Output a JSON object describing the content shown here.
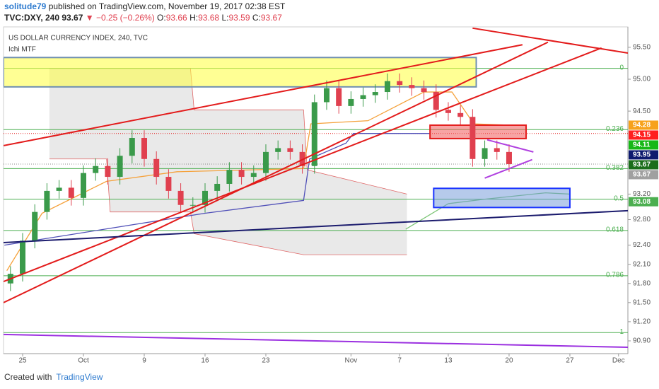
{
  "header": {
    "author": "solitude79",
    "published": "published on TradingView.com, November 19, 2017 02:38 EST",
    "symbol": "TVC:DXY, 240",
    "last": 93.67,
    "change": "▼ −0.25 (−0.26%)",
    "ohlc": [
      {
        "key": "O:",
        "value": 93.66
      },
      {
        "key": "H:",
        "value": 93.68
      },
      {
        "key": "L:",
        "value": 93.59
      },
      {
        "key": "C:",
        "value": 93.67
      }
    ]
  },
  "footer": {
    "created": "Created with",
    "brand": "TradingView"
  },
  "chart_data": {
    "type": "candlestick",
    "title": "US DOLLAR CURRENCY INDEX, 240, TVC",
    "subtitle": "Ichi MTF",
    "x": [
      -1,
      0,
      1,
      2,
      3,
      4,
      5,
      6,
      7,
      8,
      9,
      10,
      11,
      12,
      13,
      14,
      15,
      16,
      17,
      18,
      19,
      20,
      21,
      22,
      23,
      24,
      25,
      26,
      27,
      28,
      29,
      30,
      31,
      32,
      33,
      34,
      35,
      36,
      37,
      38,
      39,
      40
    ],
    "open": [
      91.8,
      91.95,
      92.47,
      92.92,
      93.25,
      93.3,
      93.14,
      93.53,
      93.64,
      93.47,
      93.8,
      94.08,
      93.75,
      93.47,
      93.25,
      93.03,
      93.03,
      93.25,
      93.36,
      93.58,
      93.47,
      93.53,
      93.86,
      93.92,
      93.86,
      93.64,
      94.64,
      94.86,
      94.58,
      94.69,
      94.75,
      94.8,
      94.97,
      94.91,
      94.86,
      94.8,
      94.52,
      94.47,
      94.41,
      93.75,
      93.92,
      93.86
    ],
    "high": [
      92.07,
      92.59,
      93.04,
      93.37,
      93.42,
      93.42,
      93.65,
      93.76,
      93.76,
      93.92,
      94.2,
      94.2,
      93.87,
      93.59,
      93.37,
      93.15,
      93.37,
      93.48,
      93.7,
      93.7,
      93.65,
      93.98,
      94.04,
      94.04,
      93.98,
      94.76,
      94.98,
      94.98,
      94.81,
      94.87,
      94.92,
      95.09,
      95.09,
      95.03,
      94.98,
      94.92,
      94.64,
      94.59,
      94.53,
      94.04,
      94.04,
      93.98
    ],
    "low": [
      91.68,
      91.83,
      92.35,
      92.8,
      93.13,
      93.02,
      93.02,
      93.41,
      93.35,
      93.35,
      93.68,
      93.63,
      93.35,
      93.13,
      92.91,
      92.91,
      92.91,
      93.13,
      93.24,
      93.35,
      93.35,
      93.41,
      93.74,
      93.74,
      93.52,
      93.52,
      94.52,
      94.46,
      94.46,
      94.57,
      94.63,
      94.68,
      94.79,
      94.74,
      94.68,
      94.4,
      94.35,
      94.29,
      93.63,
      93.63,
      93.74,
      93.55
    ],
    "close": [
      91.95,
      92.47,
      92.92,
      93.25,
      93.3,
      93.14,
      93.53,
      93.64,
      93.47,
      93.8,
      94.08,
      93.75,
      93.47,
      93.25,
      93.03,
      93.03,
      93.25,
      93.36,
      93.58,
      93.47,
      93.53,
      93.86,
      93.92,
      93.86,
      93.64,
      94.64,
      94.86,
      94.58,
      94.69,
      94.75,
      94.8,
      94.97,
      94.91,
      94.86,
      94.8,
      94.52,
      94.47,
      94.41,
      93.75,
      93.92,
      93.86,
      93.67
    ],
    "up_color": "#3a9a4a",
    "down_color": "#e0404f",
    "xlim": [
      -1.57,
      49.77
    ],
    "xticks": [
      {
        "value": 0,
        "label": "25"
      },
      {
        "value": 5,
        "label": "Oct"
      },
      {
        "value": 10,
        "label": "9"
      },
      {
        "value": 15,
        "label": "16"
      },
      {
        "value": 20,
        "label": "23"
      },
      {
        "value": 27,
        "label": "Nov"
      },
      {
        "value": 31,
        "label": "7"
      },
      {
        "value": 35,
        "label": "13"
      },
      {
        "value": 40,
        "label": "20"
      },
      {
        "value": 45,
        "label": "27"
      },
      {
        "value": 49,
        "label": "Dec"
      }
    ],
    "ylim": [
      90.7,
      95.82
    ],
    "yticks": [
      {
        "value": 95.5,
        "label": "95.50"
      },
      {
        "value": 95,
        "label": "95.00"
      },
      {
        "value": 94.5,
        "label": "94.50"
      },
      {
        "value": 93.2,
        "label": "93.20"
      },
      {
        "value": 92.8,
        "label": "92.80"
      },
      {
        "value": 92.4,
        "label": "92.40"
      },
      {
        "value": 92.1,
        "label": "92.10"
      },
      {
        "value": 91.8,
        "label": "91.80"
      },
      {
        "value": 91.5,
        "label": "91.50"
      },
      {
        "value": 91.2,
        "label": "91.20"
      },
      {
        "value": 90.9,
        "label": "90.90"
      }
    ],
    "grid": false,
    "cloud": {
      "color": "#e4e4e4",
      "edge": "#e06666",
      "x": [
        2.2,
        6.9,
        7.2,
        13.8,
        14.1,
        23.1,
        23.4,
        31.6
      ],
      "upper": [
        95.17,
        95.17,
        95.17,
        95.17,
        94.52,
        94.52,
        93.58,
        93.2
      ],
      "lower": [
        93.75,
        93.75,
        92.92,
        92.92,
        92.58,
        92.25,
        92.25,
        92.25
      ]
    },
    "indicators": [
      {
        "color": "#f5a13a",
        "x": [
          -1.3,
          1.6,
          6.9,
          12.7,
          23.1,
          23.7,
          28.4,
          33,
          35.3,
          37.1,
          40
        ],
        "values": [
          92.0,
          92.9,
          93.4,
          93.55,
          93.6,
          94.3,
          94.35,
          94.8,
          94.8,
          94.3,
          94.28
        ]
      },
      {
        "color": "#5050b8",
        "x": [
          -1.5,
          15,
          23.1,
          23.6,
          26.6,
          27.2,
          33.5
        ],
        "values": [
          92.4,
          92.9,
          93.1,
          93.75,
          94.0,
          94.15,
          94.15
        ]
      },
      {
        "color": "#7cc576",
        "x": [
          31.5,
          35,
          38,
          43,
          45
        ],
        "values": [
          92.65,
          93.05,
          93.12,
          93.22,
          93.2
        ]
      }
    ],
    "fib": {
      "color": "#4caf50",
      "levels": [
        0,
        0.236,
        0.382,
        0.5,
        0.618,
        0.786,
        1
      ],
      "prices": [
        95.17,
        94.21,
        93.6,
        93.12,
        92.63,
        91.92,
        91.03
      ]
    },
    "dotted": [
      {
        "value": 94.15,
        "color": "#e31b1b"
      },
      {
        "value": 93.67,
        "color": "#888888"
      }
    ],
    "drawings": [
      {
        "shape": "rect",
        "color": "#6f8fb0",
        "fill": "rgba(255,255,60,0.55)",
        "x": [
          -1.57,
          37.3
        ],
        "y": [
          95.34,
          94.88
        ]
      },
      {
        "shape": "rect",
        "color": "#e31b1b",
        "fill": "rgba(240,90,90,0.55)",
        "x": [
          33.5,
          41.4
        ],
        "y": [
          94.28,
          94.07
        ]
      },
      {
        "shape": "rect",
        "color": "#1a33ff",
        "fill": "rgba(110,150,215,0.5)",
        "x": [
          33.8,
          45.0
        ],
        "y": [
          93.29,
          92.99
        ]
      },
      {
        "shape": "line",
        "color": "#e31b1b",
        "x": [
          -1.57,
          41.1
        ],
        "y": [
          93.96,
          95.54
        ]
      },
      {
        "shape": "line",
        "color": "#e31b1b",
        "x": [
          -1.57,
          43.2
        ],
        "y": [
          91.5,
          95.58
        ]
      },
      {
        "shape": "line",
        "color": "#e31b1b",
        "x": [
          -1.57,
          47.6
        ],
        "y": [
          91.83,
          95.49
        ]
      },
      {
        "shape": "line",
        "color": "#e31b1b",
        "x": [
          37.0,
          49.77
        ],
        "y": [
          95.8,
          95.41
        ]
      },
      {
        "shape": "line",
        "color": "#1c1c6e",
        "x": [
          -1.57,
          49.77
        ],
        "y": [
          92.44,
          92.94
        ]
      },
      {
        "shape": "line",
        "color": "#9b30e0",
        "x": [
          -1.57,
          49.77
        ],
        "y": [
          91.0,
          90.8
        ]
      },
      {
        "shape": "line",
        "color": "#b040e0",
        "x": [
          38.2,
          42.0
        ],
        "y": [
          94.05,
          93.86
        ]
      },
      {
        "shape": "line",
        "color": "#b040e0",
        "x": [
          38.0,
          41.9
        ],
        "y": [
          93.45,
          93.74
        ]
      }
    ],
    "price_badges": [
      {
        "value": 94.28,
        "color": "#f7a21b"
      },
      {
        "value": 94.15,
        "color": "#ff1f1f"
      },
      {
        "value": 94.11,
        "color": "#16b816"
      },
      {
        "value": 93.95,
        "color": "#0d1a6e"
      },
      {
        "value": 93.67,
        "color": "#1b6e1b"
      },
      {
        "value": 93.67,
        "color": "#a0a0a0"
      },
      {
        "value": 93.08,
        "color": "#4caf50"
      }
    ]
  }
}
